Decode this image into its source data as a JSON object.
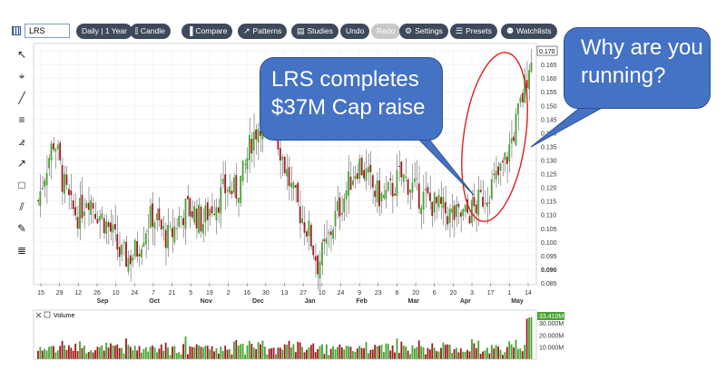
{
  "toolbar": {
    "symbol": "LRS",
    "buttons": [
      {
        "label": "Daily | 1 Year",
        "icon": ""
      },
      {
        "label": "Candle",
        "icon": "candle-icon"
      },
      {
        "label": "Compare",
        "icon": "bar-chart-icon"
      },
      {
        "label": "Patterns",
        "icon": "trend-icon"
      },
      {
        "label": "Studies",
        "icon": "book-icon"
      },
      {
        "label": "Undo",
        "icon": ""
      },
      {
        "label": "Redo",
        "icon": ""
      },
      {
        "label": "Settings",
        "icon": "gear-icon"
      },
      {
        "label": "Presets",
        "icon": "list-icon"
      },
      {
        "label": "Watchlists",
        "icon": "binoculars-icon"
      }
    ]
  },
  "tools": [
    "cursor-icon",
    "crosshair-icon",
    "line-icon",
    "hline-icon",
    "fan-icon",
    "arrow-icon",
    "rectangle-icon",
    "channel-icon",
    "pen-icon",
    "text-icon"
  ],
  "chart_data": {
    "type": "candlestick",
    "y_ticks": [
      "0.170",
      "0.165",
      "0.160",
      "0.155",
      "0.150",
      "0.145",
      "0.140",
      "0.135",
      "0.130",
      "0.125",
      "0.120",
      "0.115",
      "0.110",
      "0.105",
      "0.100",
      "0.095",
      "0.090",
      "0.085"
    ],
    "bold_ticks": [
      "0.090"
    ],
    "ylim": [
      0.085,
      0.172
    ],
    "last_price": "0.170",
    "x_day_labels": [
      "15",
      "29",
      "12",
      "26",
      "10",
      "24",
      "7",
      "21",
      "5",
      "19",
      "2",
      "16",
      "30",
      "13",
      "27",
      "10",
      "24",
      "9",
      "23",
      "6",
      "20",
      "6",
      "20",
      "3",
      "17",
      "1",
      "14"
    ],
    "x_month_labels": [
      "Sep",
      "Oct",
      "Nov",
      "Dec",
      "Jan",
      "Feb",
      "Mar",
      "Apr",
      "May"
    ],
    "price_path": [
      0.115,
      0.128,
      0.138,
      0.122,
      0.112,
      0.11,
      0.118,
      0.112,
      0.108,
      0.103,
      0.095,
      0.094,
      0.097,
      0.105,
      0.11,
      0.104,
      0.101,
      0.108,
      0.112,
      0.111,
      0.107,
      0.113,
      0.116,
      0.12,
      0.118,
      0.125,
      0.138,
      0.144,
      0.15,
      0.14,
      0.128,
      0.117,
      0.11,
      0.103,
      0.092,
      0.098,
      0.108,
      0.115,
      0.123,
      0.129,
      0.124,
      0.118,
      0.116,
      0.119,
      0.124,
      0.122,
      0.118,
      0.116,
      0.114,
      0.112,
      0.11,
      0.109,
      0.11,
      0.112,
      0.116,
      0.12,
      0.124,
      0.131,
      0.142,
      0.154,
      0.17
    ],
    "volume_label": "Volume",
    "volume_ticks": [
      "30.000M",
      "20.000M",
      "10.000M"
    ],
    "volume_last": "33.410M"
  },
  "annotations": {
    "bubble_left": [
      "LRS completes",
      "$37M Cap raise"
    ],
    "bubble_right": [
      "Why are you",
      "running?"
    ]
  },
  "colors": {
    "up": "#4aa332",
    "down": "#9c1d1d",
    "annotation_fill": "#4472c4",
    "circle": "#e02020"
  }
}
